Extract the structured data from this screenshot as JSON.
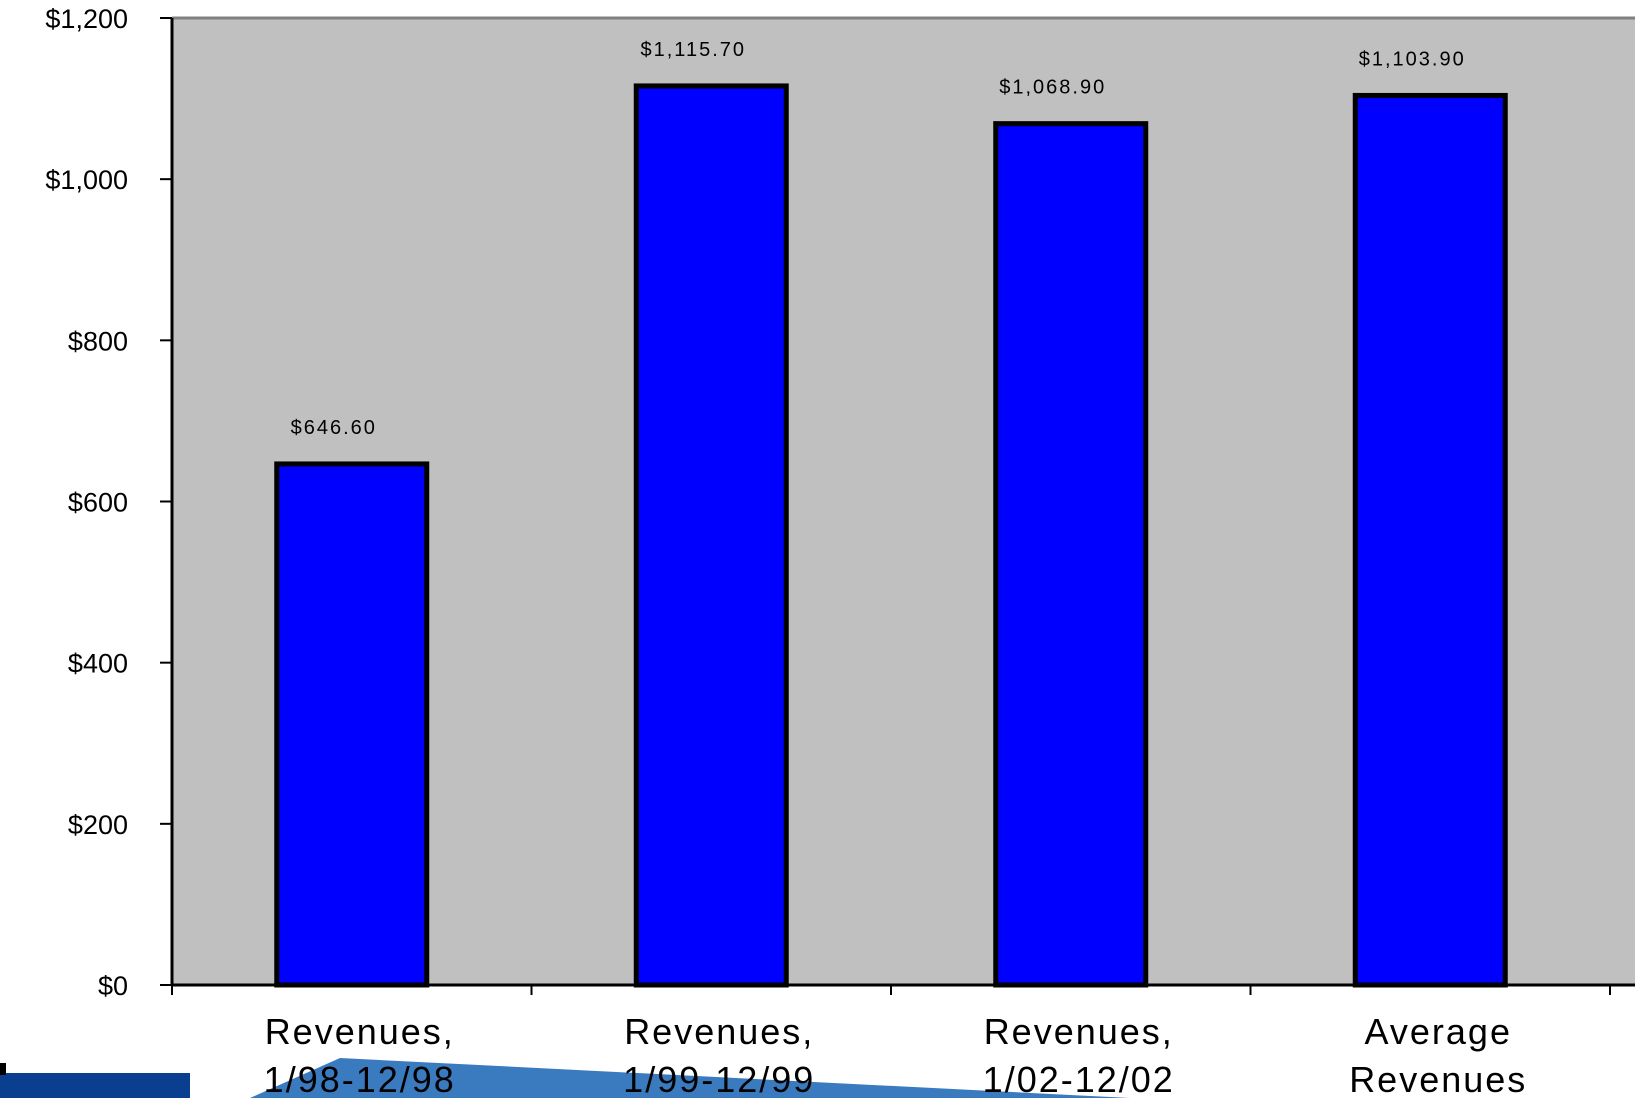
{
  "chart_data": {
    "type": "bar",
    "title": "",
    "xlabel": "",
    "ylabel": "",
    "categories": [
      [
        "Revenues,",
        "1/98-12/98"
      ],
      [
        "Revenues,",
        "1/99-12/99"
      ],
      [
        "Revenues,",
        "1/02-12/02"
      ],
      [
        "Average",
        "Revenues"
      ]
    ],
    "values": [
      646.6,
      1115.7,
      1068.9,
      1103.9
    ],
    "data_labels": [
      "$646.60",
      "$1,115.70",
      "$1,068.90",
      "$1,103.90"
    ],
    "y_ticks": [
      0,
      200,
      400,
      600,
      800,
      1000,
      1200
    ],
    "y_tick_labels": [
      "$0",
      "$200",
      "$400",
      "$600",
      "$800",
      "$1,000",
      "$1,200"
    ],
    "ylim": [
      0,
      1200
    ],
    "grid": false,
    "legend": "none",
    "colors": {
      "plot_background": "#c0c0c0",
      "bar_fill": "#0000ff",
      "bar_stroke": "#000000",
      "axis": "#000000",
      "plot_border": "#808080",
      "logo_blue": "#3a7bbf"
    }
  }
}
